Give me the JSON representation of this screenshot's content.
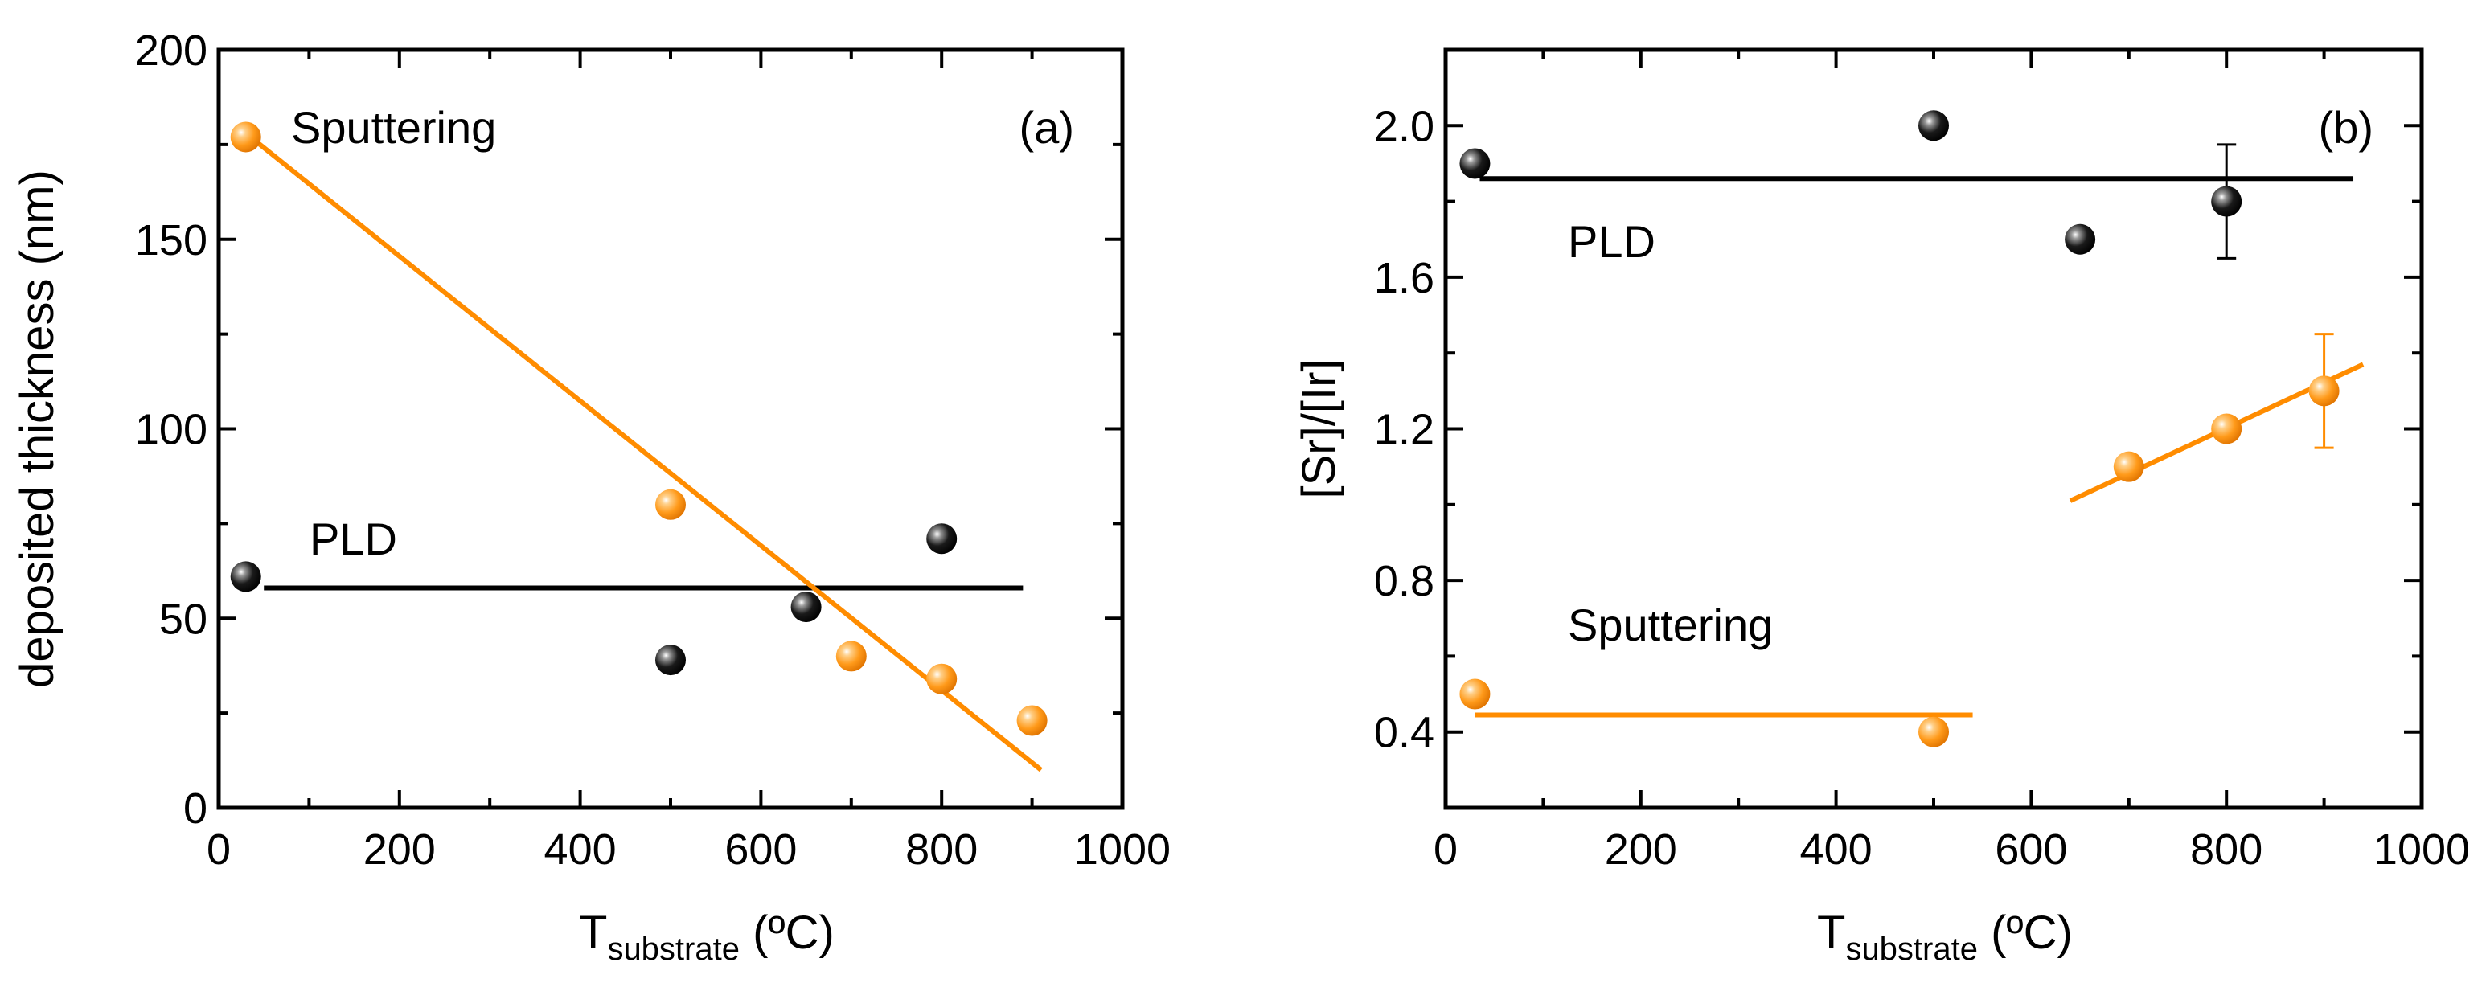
{
  "colors": {
    "pld": "#000000",
    "sputtering": "#ff8c00",
    "sputtering_light": "#ffc070"
  },
  "chart_data": [
    {
      "type": "scatter",
      "title": "",
      "panel_label": "(a)",
      "xlabel_main": "T",
      "xlabel_sub": "substrate",
      "xlabel_unit": " (ºC)",
      "ylabel": "deposited thickness (nm)",
      "xlim": [
        0,
        1000
      ],
      "ylim": [
        0,
        200
      ],
      "xticks": [
        0,
        200,
        400,
        600,
        800,
        1000
      ],
      "yticks": [
        0,
        50,
        100,
        150,
        200
      ],
      "xtick_labels": [
        "0",
        "200",
        "400",
        "600",
        "800",
        "1000"
      ],
      "ytick_labels": [
        "0",
        "50",
        "100",
        "150",
        "200"
      ],
      "series": [
        {
          "name": "PLD",
          "color": "black",
          "x": [
            30,
            500,
            650,
            800
          ],
          "y": [
            61,
            39,
            53,
            71
          ]
        },
        {
          "name": "Sputtering",
          "color": "orange",
          "x": [
            30,
            500,
            700,
            800,
            900
          ],
          "y": [
            177,
            80,
            40,
            34,
            23
          ]
        }
      ],
      "fit_lines": [
        {
          "series": "PLD",
          "x": [
            50,
            890
          ],
          "y": [
            58,
            58
          ]
        },
        {
          "series": "Sputtering",
          "x": [
            30,
            910
          ],
          "y": [
            178,
            10
          ]
        }
      ],
      "annotations": [
        {
          "text": "Sputtering",
          "x": 90,
          "y": 181
        },
        {
          "text": "PLD",
          "x": 105,
          "y": 69
        }
      ]
    },
    {
      "type": "scatter",
      "title": "",
      "panel_label": "(b)",
      "xlabel_main": "T",
      "xlabel_sub": "substrate",
      "xlabel_unit": " (ºC)",
      "ylabel": "[Sr]/[Ir]",
      "xlim": [
        0,
        1000
      ],
      "ylim": [
        0.2,
        2.2
      ],
      "xticks": [
        0,
        200,
        400,
        600,
        800,
        1000
      ],
      "yticks": [
        0.4,
        0.8,
        1.2,
        1.6,
        2.0
      ],
      "xtick_labels": [
        "0",
        "200",
        "400",
        "600",
        "800",
        "1000"
      ],
      "ytick_labels": [
        "0.4",
        "0.8",
        "1.2",
        "1.6",
        "2.0"
      ],
      "series": [
        {
          "name": "PLD",
          "color": "black",
          "x": [
            30,
            500,
            650,
            800
          ],
          "y": [
            1.9,
            2.0,
            1.7,
            1.8
          ],
          "yerr": [
            0,
            0,
            0,
            0.15
          ]
        },
        {
          "name": "Sputtering",
          "color": "orange",
          "x": [
            30,
            500,
            700,
            800,
            900
          ],
          "y": [
            0.5,
            0.4,
            1.1,
            1.2,
            1.3
          ],
          "yerr": [
            0,
            0,
            0,
            0,
            0.15
          ]
        }
      ],
      "fit_lines": [
        {
          "series": "PLD",
          "x": [
            35,
            930
          ],
          "y": [
            1.86,
            1.86
          ]
        },
        {
          "series": "Sputtering",
          "x": [
            30,
            540
          ],
          "y": [
            0.445,
            0.445
          ]
        },
        {
          "series": "Sputtering",
          "x": [
            640,
            940
          ],
          "y": [
            1.01,
            1.37
          ]
        }
      ],
      "annotations": [
        {
          "text": "PLD",
          "x": 140,
          "y": 1.7
        },
        {
          "text": "Sputtering",
          "x": 140,
          "y": 0.46
        }
      ]
    }
  ]
}
